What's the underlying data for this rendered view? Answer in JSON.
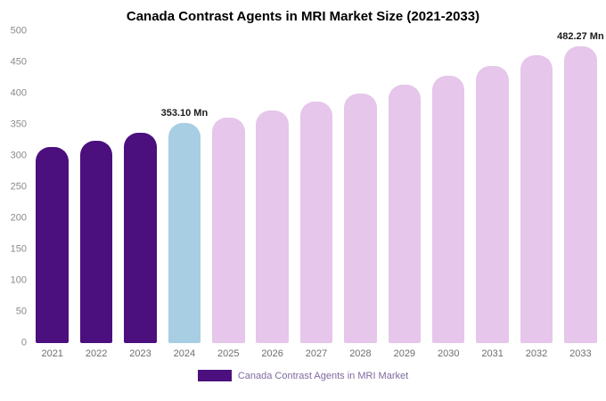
{
  "title": "Canada Contrast Agents in MRI Market Size (2021-2033)",
  "legend": {
    "label": "Canada Contrast Agents in MRI Market",
    "swatch_color": "#4B0F7E",
    "text_color": "#7D6B9E"
  },
  "colors": {
    "dark_purple": "#4B0F7E",
    "highlight_blue": "#A7CEE2",
    "forecast_pink": "#E6C6EA",
    "tick_text": "#8A8A8A",
    "axis_text": "#6E6E6E"
  },
  "chart_data": {
    "type": "bar",
    "title": "Canada Contrast Agents in MRI Market Size (2021-2033)",
    "xlabel": "",
    "ylabel": "",
    "unit": "Mn",
    "ylim": [
      0,
      500
    ],
    "yticks": [
      0,
      50,
      100,
      150,
      200,
      250,
      300,
      350,
      400,
      450,
      500
    ],
    "grid": false,
    "legend_position": "bottom",
    "categories": [
      "2021",
      "2022",
      "2023",
      "2024",
      "2025",
      "2026",
      "2027",
      "2028",
      "2029",
      "2030",
      "2031",
      "2032",
      "2033"
    ],
    "values": [
      315,
      325,
      337,
      353.1,
      362,
      373,
      387,
      400,
      415,
      429,
      444,
      461,
      482.27
    ],
    "colors": [
      "#4B0F7E",
      "#4B0F7E",
      "#4B0F7E",
      "#A7CEE2",
      "#E6C6EA",
      "#E6C6EA",
      "#E6C6EA",
      "#E6C6EA",
      "#E6C6EA",
      "#E6C6EA",
      "#E6C6EA",
      "#E6C6EA",
      "#E6C6EA"
    ],
    "annotations": [
      {
        "category": "2024",
        "text": "353.10 Mn"
      },
      {
        "category": "2033",
        "text": "482.27 Mn"
      }
    ]
  }
}
